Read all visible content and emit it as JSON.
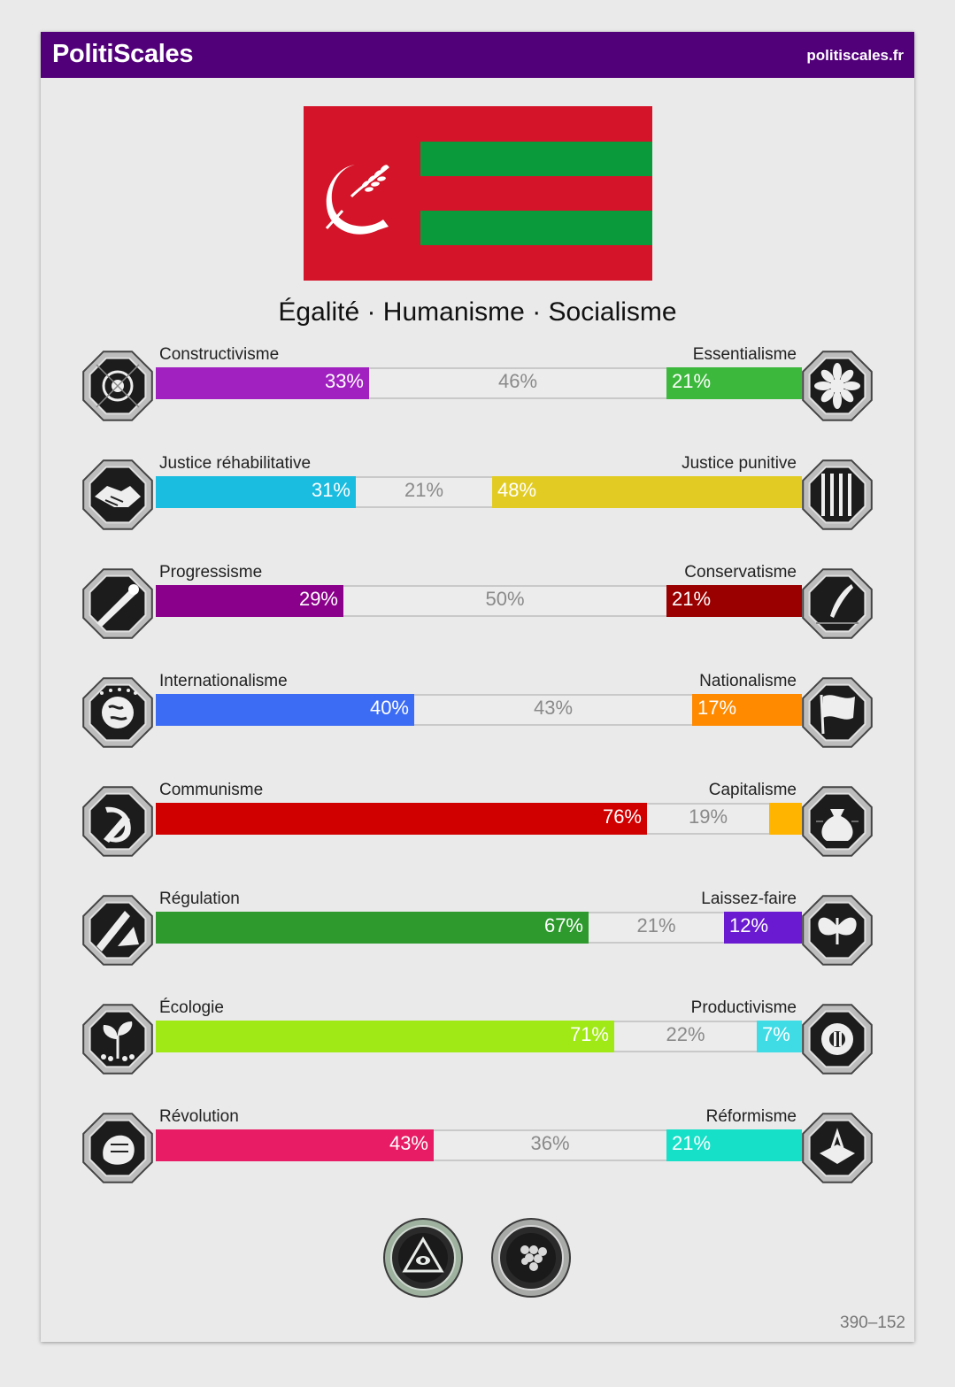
{
  "header": {
    "brand": "PolitiScales",
    "site": "politiscales.fr",
    "background_color": "#52007a"
  },
  "flag": {
    "background_color": "#d41428",
    "stripe_color": "#0a9a3c",
    "emblem": "sickle-and-wheat-icon"
  },
  "slogan": "Égalité · Humanisme · Socialisme",
  "axes": [
    {
      "left_label": "Constructivisme",
      "right_label": "Essentialisme",
      "left_value": 33,
      "middle_value": 46,
      "right_value": 21,
      "left_text": "33%",
      "middle_text": "46%",
      "right_text": "21%",
      "left_color": "#a020c0",
      "right_color": "#3cb83c",
      "left_icon": "eye-icon",
      "right_icon": "flower-icon"
    },
    {
      "left_label": "Justice réhabilitative",
      "right_label": "Justice punitive",
      "left_value": 31,
      "middle_value": 21,
      "right_value": 48,
      "left_text": "31%",
      "middle_text": "21%",
      "right_text": "48%",
      "left_color": "#1abce0",
      "right_color": "#e2cc24",
      "left_icon": "handshake-icon",
      "right_icon": "prison-bars-icon"
    },
    {
      "left_label": "Progressisme",
      "right_label": "Conservatisme",
      "left_value": 29,
      "middle_value": 50,
      "right_value": 21,
      "left_text": "29%",
      "middle_text": "50%",
      "right_text": "21%",
      "left_color": "#8a008a",
      "right_color": "#9a0000",
      "left_icon": "comet-icon",
      "right_icon": "quill-icon"
    },
    {
      "left_label": "Internationalisme",
      "right_label": "Nationalisme",
      "left_value": 40,
      "middle_value": 43,
      "right_value": 17,
      "left_text": "40%",
      "middle_text": "43%",
      "right_text": "17%",
      "left_color": "#3c6cf4",
      "right_color": "#ff8a00",
      "left_icon": "globe-icon",
      "right_icon": "flag-icon"
    },
    {
      "left_label": "Communisme",
      "right_label": "Capitalisme",
      "left_value": 76,
      "middle_value": 19,
      "right_value": 5,
      "left_text": "76%",
      "middle_text": "19%",
      "right_text": "",
      "left_color": "#d00000",
      "right_color": "#ffb400",
      "left_icon": "hammer-sickle-icon",
      "right_icon": "money-bag-icon"
    },
    {
      "left_label": "Régulation",
      "right_label": "Laissez-faire",
      "left_value": 67,
      "middle_value": 21,
      "right_value": 12,
      "left_text": "67%",
      "middle_text": "21%",
      "right_text": "12%",
      "left_color": "#2e9a2e",
      "right_color": "#6a1ad0",
      "left_icon": "ruler-compass-icon",
      "right_icon": "butterfly-icon"
    },
    {
      "left_label": "Écologie",
      "right_label": "Productivisme",
      "left_value": 71,
      "middle_value": 22,
      "right_value": 7,
      "left_text": "71%",
      "middle_text": "22%",
      "right_text": "7%",
      "left_color": "#a0e816",
      "right_color": "#40dce6",
      "left_icon": "seedling-icon",
      "right_icon": "factory-gear-icon"
    },
    {
      "left_label": "Révolution",
      "right_label": "Réformisme",
      "left_value": 43,
      "middle_value": 36,
      "right_value": 21,
      "left_text": "43%",
      "middle_text": "36%",
      "right_text": "21%",
      "left_color": "#e81c64",
      "right_color": "#16e0c8",
      "left_icon": "fist-icon",
      "right_icon": "ballot-box-icon"
    }
  ],
  "seals": [
    "all-seeing-eye-seal-icon",
    "grapes-seal-icon"
  ],
  "footer_code": "390–152"
}
